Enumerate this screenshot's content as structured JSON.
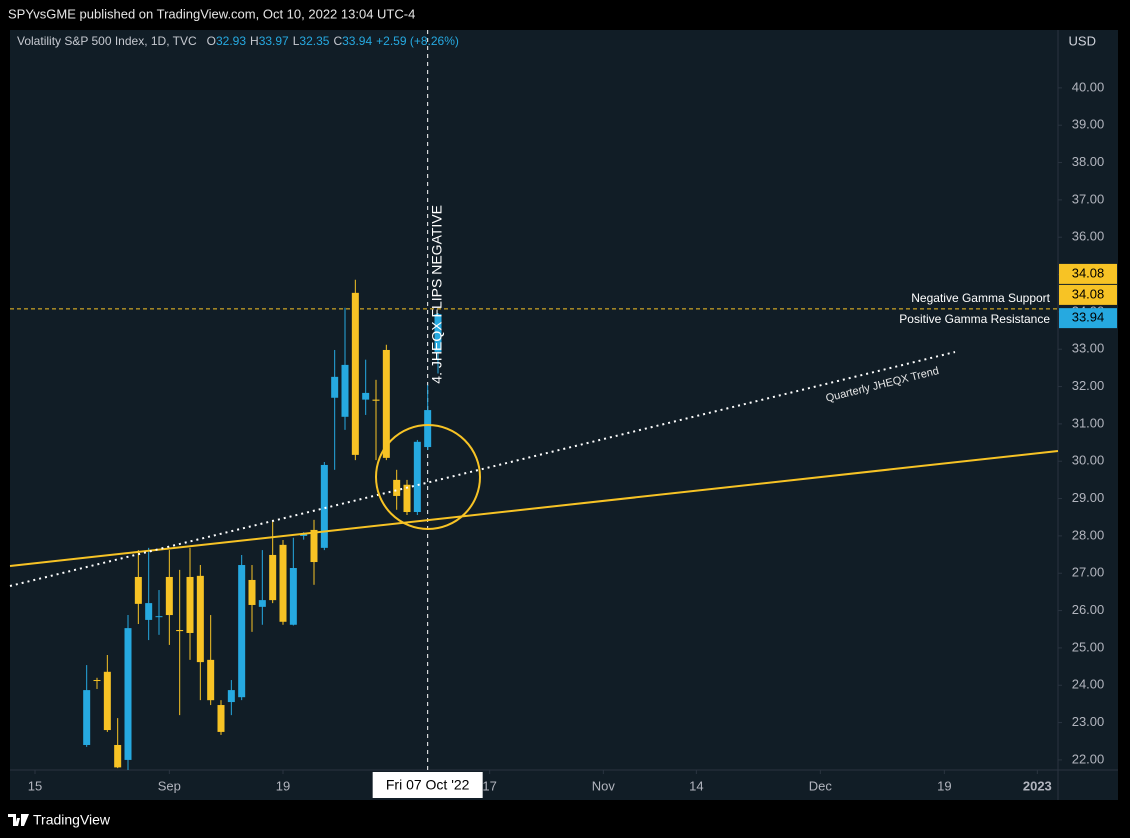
{
  "publisher": "SPYvsGME published on TradingView.com, Oct 10, 2022 13:04 UTC-4",
  "footer": "TradingView",
  "chart_data": {
    "type": "candlestick",
    "title": "Volatility S&P 500 Index, 1D, TVC",
    "ohlc_letters": [
      "O",
      "H",
      "L",
      "C"
    ],
    "change": "+2.59 (+8.26%)",
    "currency": "USD",
    "up_color": "#26a9e0",
    "down_color": "#f7c325",
    "x": [
      5,
      6,
      7,
      8,
      9,
      10,
      11,
      12,
      13,
      14,
      15,
      16,
      17,
      18,
      19,
      20,
      21,
      22,
      23,
      24,
      25,
      26,
      27,
      28,
      29,
      30,
      31,
      32,
      33,
      34,
      35,
      36,
      37,
      38,
      39
    ],
    "open": [
      22.4,
      24.14,
      24.36,
      22.4,
      22.0,
      26.9,
      25.75,
      25.83,
      26.9,
      25.48,
      26.9,
      26.93,
      24.68,
      23.47,
      23.55,
      23.68,
      26.82,
      26.1,
      27.49,
      27.76,
      25.62,
      28.0,
      28.16,
      27.68,
      31.7,
      31.19,
      34.51,
      31.65,
      31.65,
      32.98,
      29.5,
      29.37,
      28.64,
      30.38,
      32.93
    ],
    "high": [
      24.54,
      24.2,
      24.81,
      23.12,
      25.88,
      27.62,
      27.68,
      26.55,
      27.62,
      27.09,
      27.68,
      27.22,
      25.88,
      23.6,
      24.14,
      27.49,
      27.22,
      27.62,
      28.43,
      27.89,
      27.95,
      28.1,
      28.43,
      29.98,
      32.98,
      34.11,
      34.86,
      32.72,
      32.18,
      33.12,
      29.77,
      29.5,
      30.57,
      32.04,
      33.97
    ],
    "low": [
      22.35,
      23.9,
      22.75,
      21.78,
      21.73,
      25.64,
      25.21,
      25.35,
      25.08,
      23.2,
      24.68,
      23.6,
      23.47,
      22.67,
      23.2,
      23.6,
      25.43,
      25.62,
      26.2,
      25.62,
      25.6,
      27.9,
      26.69,
      27.62,
      29.77,
      30.84,
      30.03,
      31.24,
      30.03,
      30.03,
      28.7,
      28.56,
      28.56,
      30.3,
      32.35
    ],
    "close": [
      23.87,
      24.12,
      22.8,
      21.8,
      25.53,
      26.18,
      26.2,
      25.85,
      25.88,
      25.45,
      25.4,
      24.62,
      23.6,
      22.75,
      23.87,
      27.22,
      26.15,
      26.28,
      26.28,
      25.7,
      27.14,
      28.05,
      27.3,
      29.9,
      32.26,
      32.58,
      30.17,
      31.83,
      31.62,
      30.09,
      29.07,
      28.64,
      30.52,
      31.37,
      33.94
    ],
    "xlim": [
      -2.42,
      99
    ],
    "xticks": [
      {
        "value": 0,
        "label": "15"
      },
      {
        "value": 13,
        "label": "Sep"
      },
      {
        "value": 24,
        "label": "19"
      },
      {
        "value": 44,
        "label": "17"
      },
      {
        "value": 55,
        "label": "Nov"
      },
      {
        "value": 64,
        "label": "14"
      },
      {
        "value": 76,
        "label": "Dec"
      },
      {
        "value": 88,
        "label": "19"
      },
      {
        "value": 97,
        "label": "2023"
      }
    ],
    "ylim": [
      21.73,
      41.55
    ],
    "yticks": [
      {
        "value": 22,
        "label": "22.00"
      },
      {
        "value": 23,
        "label": "23.00"
      },
      {
        "value": 24,
        "label": "24.00"
      },
      {
        "value": 25,
        "label": "25.00"
      },
      {
        "value": 26,
        "label": "26.00"
      },
      {
        "value": 27,
        "label": "27.00"
      },
      {
        "value": 28,
        "label": "28.00"
      },
      {
        "value": 29,
        "label": "29.00"
      },
      {
        "value": 30,
        "label": "30.00"
      },
      {
        "value": 31,
        "label": "31.00"
      },
      {
        "value": 32,
        "label": "32.00"
      },
      {
        "value": 33,
        "label": "33.00"
      },
      {
        "value": 34,
        "label": "34.00"
      },
      {
        "value": 35,
        "label": "35.00"
      },
      {
        "value": 36,
        "label": "36.00"
      },
      {
        "value": 37,
        "label": "37.00"
      },
      {
        "value": 38,
        "label": "38.00"
      },
      {
        "value": 39,
        "label": "39.00"
      },
      {
        "value": 40,
        "label": "40.00"
      }
    ],
    "level": {
      "value": 34.08,
      "name": "Negative Gamma Support",
      "color": "#f7c325"
    },
    "last_price_name": "Positive Gamma Resistance",
    "vline": {
      "x": 38,
      "text": "4. JHEQX FLIPS NEGATIVE",
      "crosshair_label": "Fri 07 Oct '22"
    },
    "trend_label": "Quarterly JHEQX Trend"
  }
}
